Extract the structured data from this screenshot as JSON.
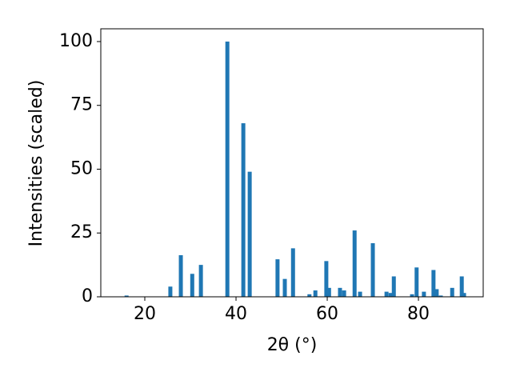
{
  "chart_data": {
    "type": "bar",
    "xlabel": "2θ (°)",
    "ylabel": "Intensities (scaled)",
    "color": "#1f77b4",
    "x": [
      16.0,
      25.6,
      27.9,
      30.4,
      32.3,
      38.1,
      41.6,
      43.0,
      49.1,
      50.7,
      52.5,
      56.1,
      57.4,
      59.8,
      60.4,
      62.8,
      63.7,
      66.0,
      67.2,
      70.0,
      73.0,
      73.9,
      74.6,
      78.6,
      79.6,
      81.2,
      83.3,
      84.0,
      84.9,
      87.4,
      89.5,
      90.0
    ],
    "values": [
      0.5,
      4,
      16.3,
      9,
      12.5,
      100,
      68,
      49,
      14.7,
      7,
      19,
      1,
      2.5,
      14,
      3.5,
      3.5,
      2.5,
      26,
      2,
      21,
      2,
      1.5,
      8,
      1,
      11.5,
      2,
      10.5,
      3,
      0.5,
      3.5,
      8,
      1.5
    ],
    "xlim": [
      10.35,
      94.2
    ],
    "ylim": [
      0,
      105
    ],
    "xticks": [
      20,
      40,
      60,
      80
    ],
    "yticks": [
      0,
      25,
      50,
      75,
      100
    ]
  }
}
